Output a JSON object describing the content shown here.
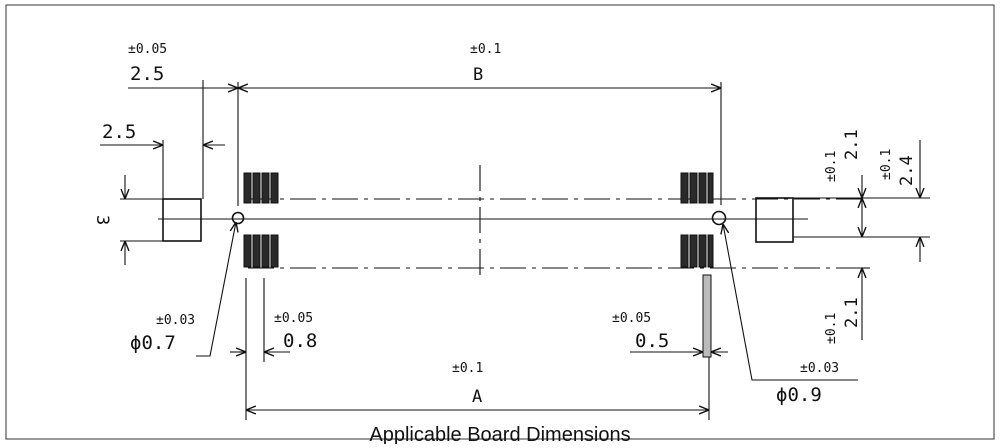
{
  "figure": {
    "caption": "Applicable Board Dimensions"
  },
  "dimensions": {
    "top_left_tol": "±0.05",
    "top_left_val": "2.5",
    "left_gap_val": "2.5",
    "height_val": "3",
    "top_b_tol": "±0.1",
    "top_b_val": "B",
    "right_top_tol": "±0.1",
    "right_top_val": "2.1",
    "right_mid_tol": "±0.1",
    "right_mid_val": "2.4",
    "right_bot_tol": "±0.1",
    "right_bot_val": "2.1",
    "hole_left_tol": "±0.03",
    "hole_left_val": "ϕ0.7",
    "pitch_left_tol": "±0.05",
    "pitch_left_val": "0.8",
    "pitch_right_tol": "±0.05",
    "pitch_right_val": "0.5",
    "bottom_a_tol": "±0.1",
    "bottom_a_val": "A",
    "hole_right_tol": "±0.03",
    "hole_right_val": "ϕ0.9"
  }
}
